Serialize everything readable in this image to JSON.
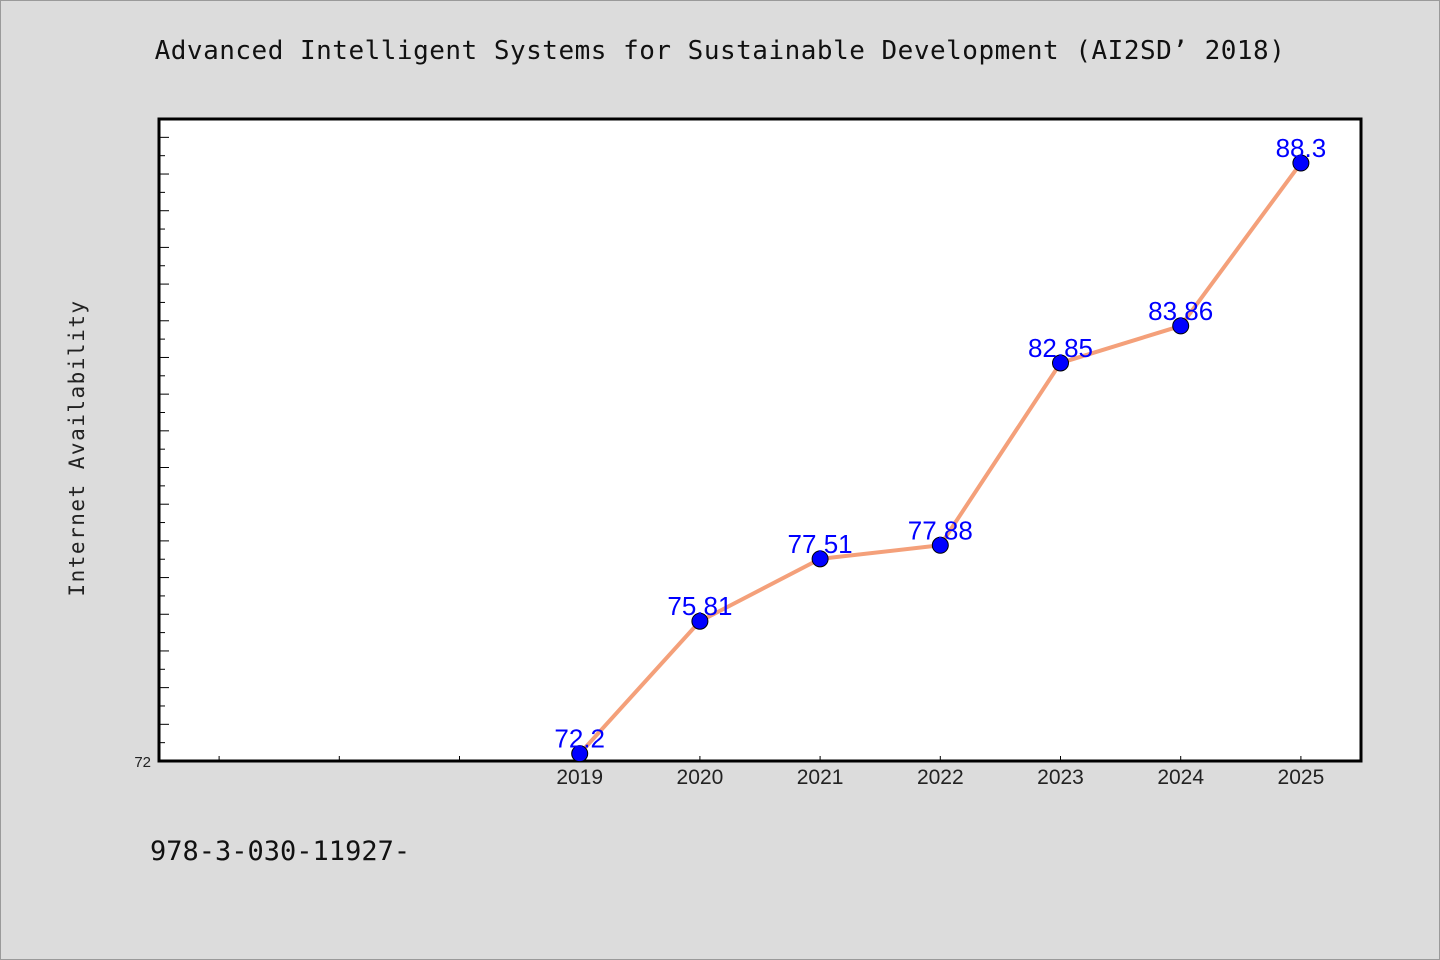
{
  "chart_data": {
    "type": "line",
    "title": "Advanced Intelligent Systems for Sustainable Development (AI2SD’ 2018)",
    "xlabel": "",
    "ylabel": "Internet Availability",
    "x_categories": [
      "2019",
      "2020",
      "2021",
      "2022",
      "2023",
      "2024",
      "2025"
    ],
    "x_range": [
      2015.5,
      2025.5
    ],
    "y_tick_labels": [
      "72"
    ],
    "ylim": [
      72,
      89.5
    ],
    "grid": false,
    "legend": "none",
    "series": [
      {
        "x": [
          2019,
          2020,
          2021,
          2022,
          2023,
          2024,
          2025
        ],
        "values": [
          72.2,
          75.81,
          77.51,
          77.88,
          82.85,
          83.86,
          88.3
        ],
        "labels": [
          "72.2",
          "75.81",
          "77.51",
          "77.88",
          "82.85",
          "83.86",
          "88.3"
        ],
        "line_color": "#f4a07a",
        "marker_color": "#0000ff"
      }
    ]
  },
  "footer": {
    "text": "978-3-030-11927-"
  },
  "colors": {
    "background": "#dcdcdc",
    "plot_background": "#ffffff",
    "line": "#f4a07a",
    "marker": "#0000ff",
    "label": "#0000ff"
  }
}
